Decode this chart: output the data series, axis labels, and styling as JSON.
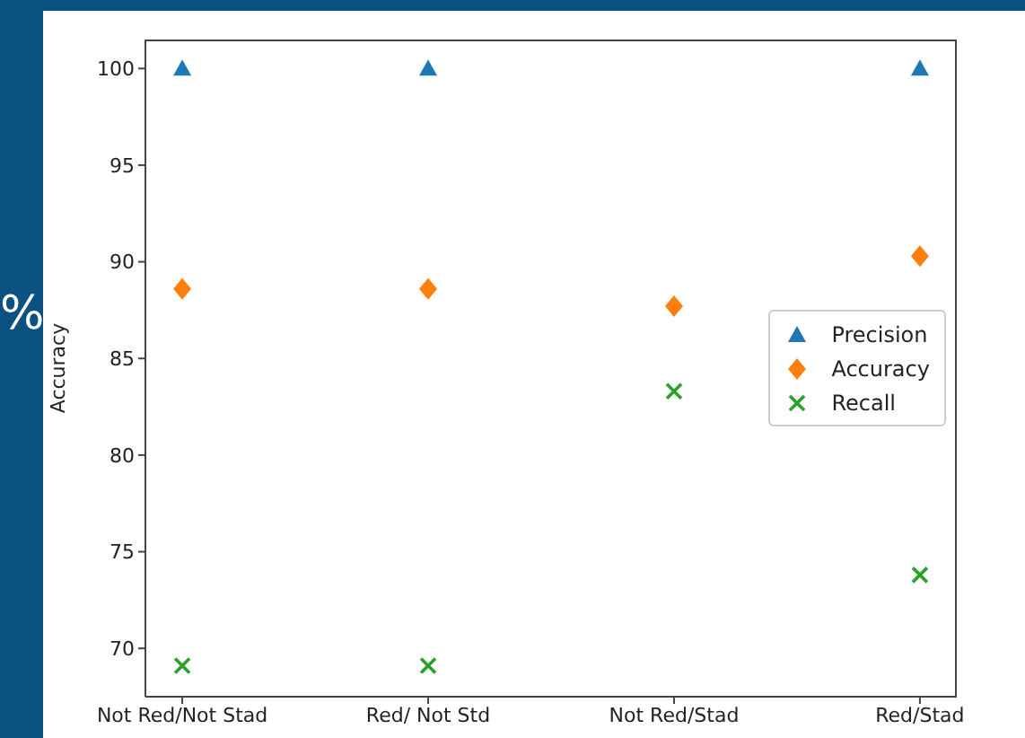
{
  "chart_data": {
    "type": "scatter",
    "ylabel": "Accuracy",
    "categories": [
      "Not Red/Not Stad",
      "Red/ Not Std",
      "Not Red/Stad",
      "Red/Stad"
    ],
    "series": [
      {
        "name": "Precision",
        "color": "#1f77b4",
        "marker": "triangle",
        "values": [
          100,
          100,
          null,
          100
        ]
      },
      {
        "name": "Accuracy",
        "color": "#ff7f0e",
        "marker": "diamond",
        "values": [
          88.6,
          88.6,
          87.7,
          90.3
        ]
      },
      {
        "name": "Recall",
        "color": "#2ca02c",
        "marker": "cross",
        "values": [
          69.1,
          69.1,
          83.3,
          73.8
        ]
      }
    ],
    "ylim": [
      67.5,
      101.5
    ],
    "yticks": [
      70,
      75,
      80,
      85,
      90,
      95,
      100
    ],
    "legend": "right",
    "grid": false,
    "annotations": [
      "%"
    ]
  }
}
